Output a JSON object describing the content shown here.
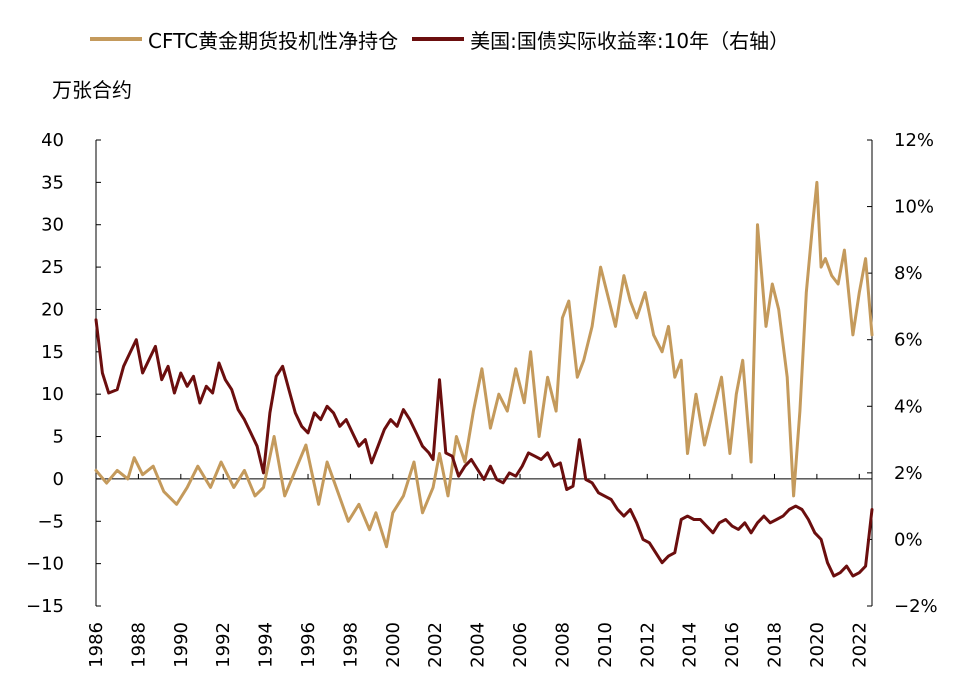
{
  "legend": {
    "gold_label": "CFTC黄金期货投机性净持仓",
    "yield_label": "美国:国债实际收益率:10年（右轴）"
  },
  "unit_label": "万张合约",
  "chart_data": {
    "type": "line",
    "title": "",
    "xlabel": "",
    "ylabel_left": "万张合约",
    "ylabel_right": "",
    "xlim": [
      1986,
      2022.6
    ],
    "ylim_left": [
      -15,
      40
    ],
    "ylim_right": [
      -2,
      12
    ],
    "x_ticks": [
      "1986",
      "1988",
      "1990",
      "1992",
      "1994",
      "1996",
      "1998",
      "2000",
      "2002",
      "2004",
      "2006",
      "2008",
      "2010",
      "2012",
      "2014",
      "2016",
      "2018",
      "2020",
      "2022"
    ],
    "y_left_ticks": [
      "40",
      "35",
      "30",
      "25",
      "20",
      "15",
      "10",
      "5",
      "0",
      "−5",
      "−10",
      "−15"
    ],
    "y_right_ticks": [
      "12%",
      "10%",
      "8%",
      "6%",
      "4%",
      "2%",
      "0%",
      "−2%"
    ],
    "grid": false,
    "legend_position": "top",
    "series": [
      {
        "name": "CFTC黄金期货投机性净持仓",
        "axis": "left",
        "color": "#C49A5C",
        "x": [
          1986.0,
          1986.5,
          1987.0,
          1987.5,
          1987.8,
          1988.2,
          1988.7,
          1989.2,
          1989.8,
          1990.3,
          1990.8,
          1991.4,
          1991.9,
          1992.5,
          1993.0,
          1993.5,
          1993.9,
          1994.4,
          1994.9,
          1995.4,
          1995.9,
          1996.5,
          1996.9,
          1997.4,
          1997.9,
          1998.4,
          1998.9,
          1999.2,
          1999.7,
          2000.0,
          2000.5,
          2001.0,
          2001.4,
          2001.9,
          2002.2,
          2002.6,
          2003.0,
          2003.4,
          2003.8,
          2004.2,
          2004.6,
          2005.0,
          2005.4,
          2005.8,
          2006.2,
          2006.5,
          2006.9,
          2007.3,
          2007.7,
          2008.0,
          2008.3,
          2008.7,
          2009.0,
          2009.4,
          2009.8,
          2010.1,
          2010.5,
          2010.9,
          2011.2,
          2011.5,
          2011.9,
          2012.3,
          2012.7,
          2013.0,
          2013.3,
          2013.6,
          2013.9,
          2014.3,
          2014.7,
          2015.1,
          2015.5,
          2015.9,
          2016.2,
          2016.5,
          2016.9,
          2017.2,
          2017.6,
          2017.9,
          2018.2,
          2018.6,
          2018.9,
          2019.2,
          2019.5,
          2019.8,
          2020.0,
          2020.2,
          2020.4,
          2020.7,
          2021.0,
          2021.3,
          2021.7,
          2022.0,
          2022.3,
          2022.6
        ],
        "y": [
          1,
          -0.5,
          1,
          0,
          2.5,
          0.5,
          1.5,
          -1.5,
          -3,
          -1,
          1.5,
          -1,
          2,
          -1,
          1,
          -2,
          -1,
          5,
          -2,
          1,
          4,
          -3,
          2,
          -1.5,
          -5,
          -3,
          -6,
          -4,
          -8,
          -4,
          -2,
          2,
          -4,
          -1,
          3,
          -2,
          5,
          2,
          8,
          13,
          6,
          10,
          8,
          13,
          9,
          15,
          5,
          12,
          8,
          19,
          21,
          12,
          14,
          18,
          25,
          22,
          18,
          24,
          21,
          19,
          22,
          17,
          15,
          18,
          12,
          14,
          3,
          10,
          4,
          8,
          12,
          3,
          10,
          14,
          2,
          30,
          18,
          23,
          20,
          12,
          -2,
          8,
          22,
          30,
          35,
          25,
          26,
          24,
          23,
          27,
          17,
          22,
          26,
          17
        ]
      },
      {
        "name": "美国:国债实际收益率:10年（右轴）",
        "axis": "right",
        "color": "#6B0E0E",
        "x": [
          1986.0,
          1986.3,
          1986.6,
          1987.0,
          1987.3,
          1987.6,
          1987.9,
          1988.2,
          1988.5,
          1988.8,
          1989.1,
          1989.4,
          1989.7,
          1990.0,
          1990.3,
          1990.6,
          1990.9,
          1991.2,
          1991.5,
          1991.8,
          1992.1,
          1992.4,
          1992.7,
          1993.0,
          1993.3,
          1993.6,
          1993.9,
          1994.2,
          1994.5,
          1994.8,
          1995.1,
          1995.4,
          1995.7,
          1996.0,
          1996.3,
          1996.6,
          1996.9,
          1997.2,
          1997.5,
          1997.8,
          1998.1,
          1998.4,
          1998.7,
          1999.0,
          1999.3,
          1999.6,
          1999.9,
          2000.2,
          2000.5,
          2000.8,
          2001.1,
          2001.4,
          2001.7,
          2001.9,
          2002.2,
          2002.5,
          2002.8,
          2003.1,
          2003.4,
          2003.7,
          2004.0,
          2004.3,
          2004.6,
          2004.9,
          2005.2,
          2005.5,
          2005.8,
          2006.1,
          2006.4,
          2006.7,
          2007.0,
          2007.3,
          2007.6,
          2007.9,
          2008.2,
          2008.5,
          2008.8,
          2009.1,
          2009.4,
          2009.7,
          2010.0,
          2010.3,
          2010.6,
          2010.9,
          2011.2,
          2011.5,
          2011.8,
          2012.1,
          2012.4,
          2012.7,
          2013.0,
          2013.3,
          2013.6,
          2013.9,
          2014.2,
          2014.5,
          2014.8,
          2015.1,
          2015.4,
          2015.7,
          2016.0,
          2016.3,
          2016.6,
          2016.9,
          2017.2,
          2017.5,
          2017.8,
          2018.1,
          2018.4,
          2018.7,
          2019.0,
          2019.3,
          2019.6,
          2019.9,
          2020.2,
          2020.5,
          2020.8,
          2021.1,
          2021.4,
          2021.7,
          2022.0,
          2022.3,
          2022.6
        ],
        "y": [
          6.6,
          5.0,
          4.4,
          4.5,
          5.2,
          5.6,
          6.0,
          5.0,
          5.4,
          5.8,
          4.8,
          5.2,
          4.4,
          5.0,
          4.6,
          4.9,
          4.1,
          4.6,
          4.4,
          5.3,
          4.8,
          4.5,
          3.9,
          3.6,
          3.2,
          2.8,
          2.0,
          3.8,
          4.9,
          5.2,
          4.5,
          3.8,
          3.4,
          3.2,
          3.8,
          3.6,
          4.0,
          3.8,
          3.4,
          3.6,
          3.2,
          2.8,
          3.0,
          2.3,
          2.8,
          3.3,
          3.6,
          3.4,
          3.9,
          3.6,
          3.2,
          2.8,
          2.6,
          2.4,
          4.8,
          2.6,
          2.5,
          1.9,
          2.2,
          2.4,
          2.1,
          1.8,
          2.2,
          1.8,
          1.7,
          2.0,
          1.9,
          2.2,
          2.6,
          2.5,
          2.4,
          2.6,
          2.2,
          2.3,
          1.5,
          1.6,
          3.0,
          1.8,
          1.7,
          1.4,
          1.3,
          1.2,
          0.9,
          0.7,
          0.9,
          0.5,
          0.0,
          -0.1,
          -0.4,
          -0.7,
          -0.5,
          -0.4,
          0.6,
          0.7,
          0.6,
          0.6,
          0.4,
          0.2,
          0.5,
          0.6,
          0.4,
          0.3,
          0.5,
          0.2,
          0.5,
          0.7,
          0.5,
          0.6,
          0.7,
          0.9,
          1.0,
          0.9,
          0.6,
          0.2,
          0.0,
          -0.7,
          -1.1,
          -1.0,
          -0.8,
          -1.1,
          -1.0,
          -0.8,
          0.9
        ]
      }
    ]
  }
}
